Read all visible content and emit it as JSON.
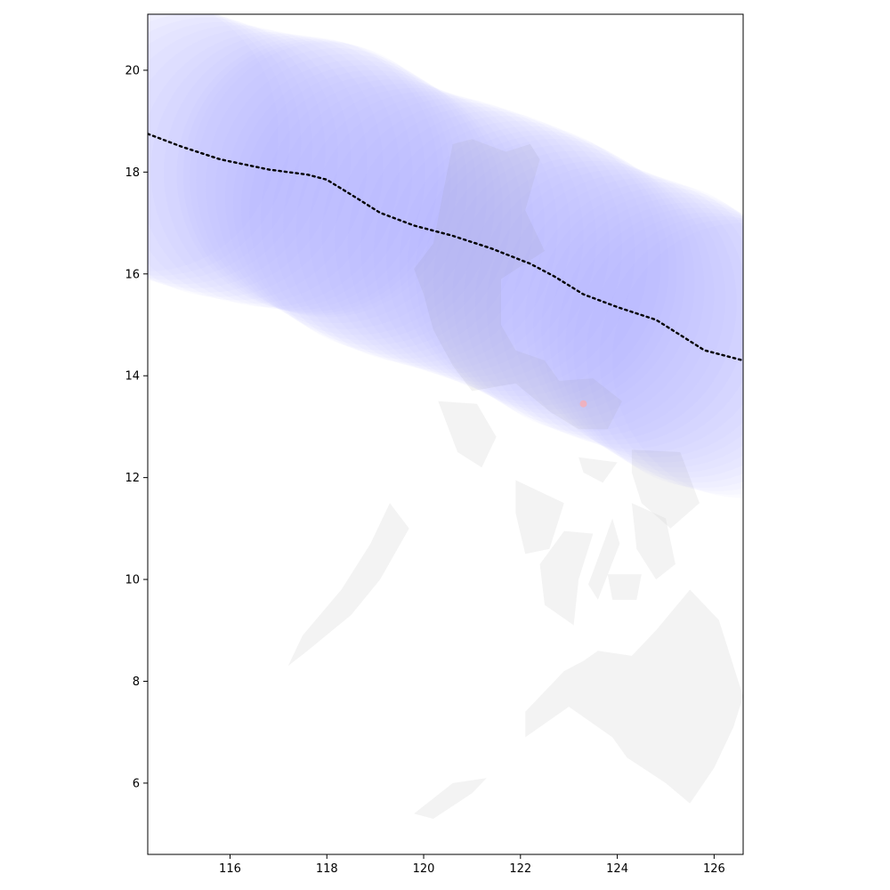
{
  "chart_data": {
    "type": "map",
    "title": "",
    "xlabel": "",
    "ylabel": "",
    "xlim": [
      114.3,
      126.6
    ],
    "ylim": [
      4.6,
      21.1
    ],
    "x_ticks": [
      {
        "value": 116,
        "label": "116"
      },
      {
        "value": 118,
        "label": "118"
      },
      {
        "value": 120,
        "label": "120"
      },
      {
        "value": 122,
        "label": "122"
      },
      {
        "value": 124,
        "label": "124"
      },
      {
        "value": 126,
        "label": "126"
      }
    ],
    "y_ticks": [
      {
        "value": 6,
        "label": "6"
      },
      {
        "value": 8,
        "label": "8"
      },
      {
        "value": 10,
        "label": "10"
      },
      {
        "value": 12,
        "label": "12"
      },
      {
        "value": 14,
        "label": "14"
      },
      {
        "value": 16,
        "label": "16"
      },
      {
        "value": 18,
        "label": "18"
      },
      {
        "value": 20,
        "label": "20"
      }
    ],
    "grid": false,
    "colors": {
      "track": "#000000",
      "swath": "#a0a0ff",
      "land": "#d8d8d8",
      "marker": "#ffaaaa"
    },
    "track": [
      [
        114.3,
        18.75
      ],
      [
        115.0,
        18.5
      ],
      [
        115.8,
        18.25
      ],
      [
        116.8,
        18.05
      ],
      [
        117.6,
        17.95
      ],
      [
        118.0,
        17.85
      ],
      [
        118.6,
        17.5
      ],
      [
        119.1,
        17.2
      ],
      [
        119.8,
        16.95
      ],
      [
        120.6,
        16.75
      ],
      [
        121.4,
        16.5
      ],
      [
        122.2,
        16.2
      ],
      [
        122.7,
        15.95
      ],
      [
        123.3,
        15.6
      ],
      [
        124.0,
        15.35
      ],
      [
        124.8,
        15.1
      ],
      [
        125.3,
        14.8
      ],
      [
        125.8,
        14.5
      ],
      [
        126.6,
        14.3
      ]
    ],
    "swath_radius_deg": 2.7,
    "marker": {
      "lon": 123.3,
      "lat": 13.45
    },
    "land": [
      {
        "name": "Luzon",
        "coords": [
          [
            120.6,
            18.55
          ],
          [
            121.0,
            18.65
          ],
          [
            121.7,
            18.4
          ],
          [
            122.2,
            18.55
          ],
          [
            122.4,
            18.25
          ],
          [
            122.1,
            17.25
          ],
          [
            122.5,
            16.45
          ],
          [
            121.6,
            15.9
          ],
          [
            121.6,
            15.0
          ],
          [
            121.9,
            14.5
          ],
          [
            122.5,
            14.3
          ],
          [
            122.8,
            13.9
          ],
          [
            123.5,
            13.95
          ],
          [
            124.1,
            13.5
          ],
          [
            123.8,
            12.95
          ],
          [
            123.2,
            12.95
          ],
          [
            122.6,
            13.3
          ],
          [
            121.9,
            13.85
          ],
          [
            121.0,
            13.7
          ],
          [
            120.6,
            14.2
          ],
          [
            120.2,
            14.9
          ],
          [
            120.0,
            15.6
          ],
          [
            119.8,
            16.1
          ],
          [
            120.2,
            16.6
          ],
          [
            120.4,
            17.6
          ]
        ]
      },
      {
        "name": "Mindoro",
        "coords": [
          [
            120.3,
            13.5
          ],
          [
            121.1,
            13.45
          ],
          [
            121.5,
            12.8
          ],
          [
            121.2,
            12.2
          ],
          [
            120.7,
            12.5
          ],
          [
            120.5,
            13.0
          ]
        ]
      },
      {
        "name": "Palawan",
        "coords": [
          [
            119.3,
            11.5
          ],
          [
            119.7,
            11.0
          ],
          [
            119.1,
            10.0
          ],
          [
            118.5,
            9.3
          ],
          [
            117.6,
            8.6
          ],
          [
            117.2,
            8.3
          ],
          [
            117.5,
            8.9
          ],
          [
            118.3,
            9.8
          ],
          [
            118.9,
            10.7
          ]
        ]
      },
      {
        "name": "Panay",
        "coords": [
          [
            121.9,
            11.95
          ],
          [
            122.9,
            11.5
          ],
          [
            122.6,
            10.6
          ],
          [
            122.1,
            10.5
          ],
          [
            121.9,
            11.3
          ]
        ]
      },
      {
        "name": "Negros",
        "coords": [
          [
            122.9,
            10.95
          ],
          [
            123.5,
            10.9
          ],
          [
            123.2,
            10.0
          ],
          [
            123.1,
            9.1
          ],
          [
            122.5,
            9.5
          ],
          [
            122.4,
            10.3
          ]
        ]
      },
      {
        "name": "Cebu",
        "coords": [
          [
            123.9,
            11.2
          ],
          [
            124.05,
            10.7
          ],
          [
            123.6,
            9.6
          ],
          [
            123.4,
            9.9
          ],
          [
            123.75,
            10.8
          ]
        ]
      },
      {
        "name": "Bohol",
        "coords": [
          [
            123.8,
            10.1
          ],
          [
            124.5,
            10.1
          ],
          [
            124.4,
            9.6
          ],
          [
            123.9,
            9.6
          ]
        ]
      },
      {
        "name": "Samar",
        "coords": [
          [
            124.3,
            12.55
          ],
          [
            125.3,
            12.5
          ],
          [
            125.7,
            11.5
          ],
          [
            125.1,
            11.0
          ],
          [
            124.5,
            11.5
          ],
          [
            124.3,
            12.1
          ]
        ]
      },
      {
        "name": "Leyte",
        "coords": [
          [
            124.3,
            11.5
          ],
          [
            125.0,
            11.2
          ],
          [
            125.2,
            10.3
          ],
          [
            124.8,
            10.0
          ],
          [
            124.4,
            10.6
          ]
        ]
      },
      {
        "name": "Masbate",
        "coords": [
          [
            123.2,
            12.4
          ],
          [
            124.0,
            12.3
          ],
          [
            123.7,
            11.9
          ],
          [
            123.3,
            12.1
          ]
        ]
      },
      {
        "name": "Mindanao",
        "coords": [
          [
            123.6,
            8.6
          ],
          [
            124.3,
            8.5
          ],
          [
            124.8,
            9.0
          ],
          [
            125.5,
            9.8
          ],
          [
            126.1,
            9.2
          ],
          [
            126.6,
            7.7
          ],
          [
            126.4,
            7.1
          ],
          [
            126.0,
            6.3
          ],
          [
            125.5,
            5.6
          ],
          [
            125.0,
            6.0
          ],
          [
            124.2,
            6.5
          ],
          [
            123.9,
            6.9
          ],
          [
            123.0,
            7.5
          ],
          [
            122.1,
            6.9
          ],
          [
            122.1,
            7.4
          ],
          [
            122.9,
            8.2
          ],
          [
            123.3,
            8.4
          ]
        ]
      },
      {
        "name": "Sulu",
        "coords": [
          [
            119.8,
            5.4
          ],
          [
            120.6,
            6.0
          ],
          [
            121.3,
            6.1
          ],
          [
            121.0,
            5.8
          ],
          [
            120.2,
            5.3
          ]
        ]
      }
    ]
  }
}
